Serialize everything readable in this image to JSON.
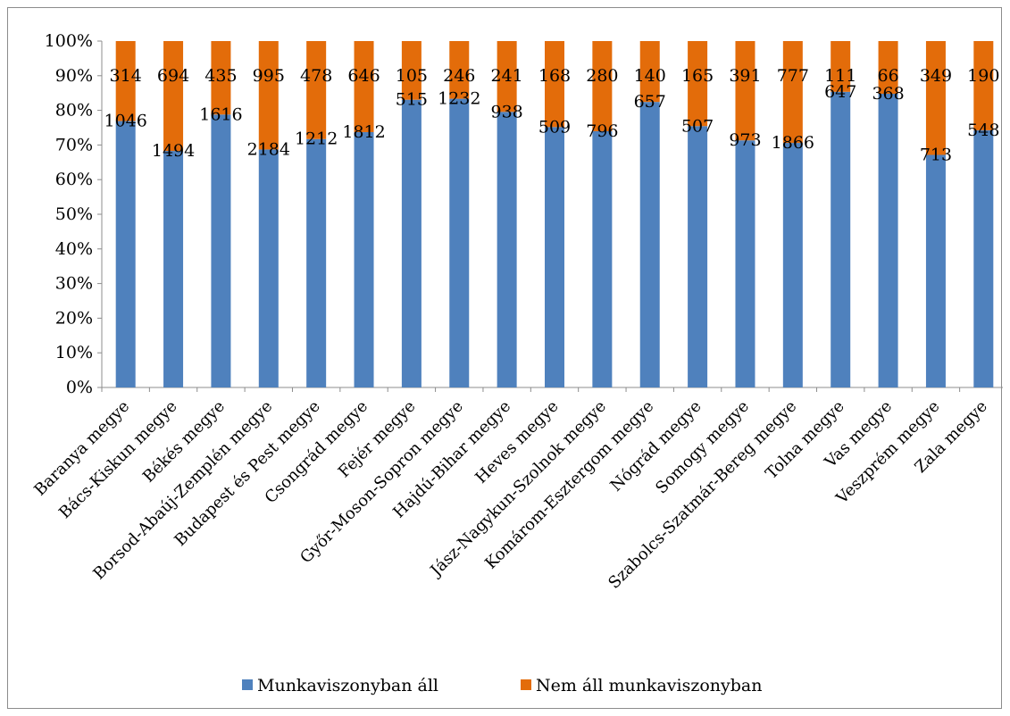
{
  "chart_data": {
    "type": "bar",
    "stacked": "percent",
    "title": "",
    "xlabel": "",
    "ylabel": "",
    "ylim": [
      0,
      100
    ],
    "y_ticks": [
      "0%",
      "10%",
      "20%",
      "30%",
      "40%",
      "50%",
      "60%",
      "70%",
      "80%",
      "90%",
      "100%"
    ],
    "grid": false,
    "legend_position": "bottom",
    "categories": [
      "Baranya megye",
      "Bács-Kiskun megye",
      "Békés megye",
      "Borsod-Abaúj-Zemplén megye",
      "Budapest és Pest megye",
      "Csongrád megye",
      "Fejér megye",
      "Győr-Moson-Sopron megye",
      "Hajdú-Bihar megye",
      "Heves megye",
      "Jász-Nagykun-Szolnok megye",
      "Komárom-Esztergom megye",
      "Nógrád megye",
      "Somogy megye",
      "Szabolcs-Szatmár-Bereg megye",
      "Tolna megye",
      "Vas megye",
      "Veszprém megye",
      "Zala megye"
    ],
    "series": [
      {
        "name": "Munkaviszonyban áll",
        "color": "#4f81bd",
        "values": [
          1046,
          1494,
          1616,
          2184,
          1212,
          1812,
          515,
          1232,
          938,
          509,
          796,
          657,
          507,
          973,
          1866,
          647,
          368,
          713,
          548
        ]
      },
      {
        "name": "Nem áll munkaviszonyban",
        "color": "#e36c0a",
        "values": [
          314,
          694,
          435,
          995,
          478,
          646,
          105,
          246,
          241,
          168,
          280,
          140,
          165,
          391,
          777,
          111,
          66,
          349,
          190
        ]
      }
    ]
  }
}
